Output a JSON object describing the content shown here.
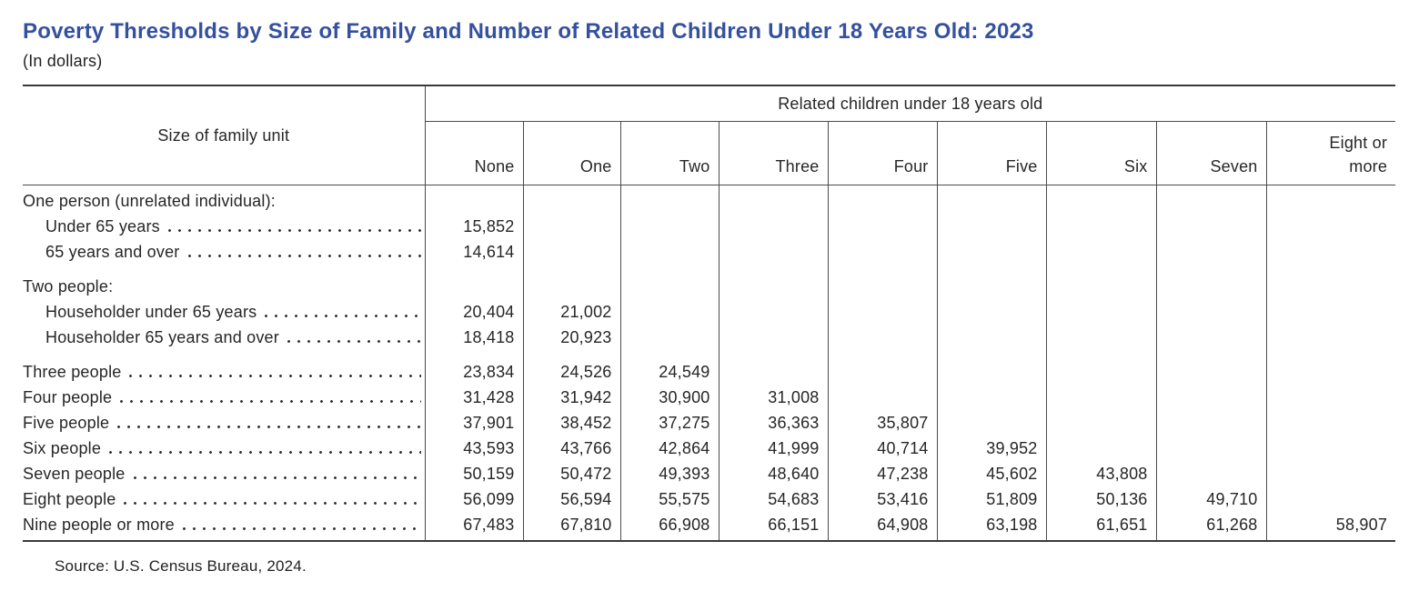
{
  "title": "Poverty Thresholds by Size of Family and Number of Related Children Under 18 Years Old: 2023",
  "subtitle": "(In dollars)",
  "source": "Source: U.S. Census Bureau, 2024.",
  "table": {
    "row_header": "Size of family unit",
    "col_group_header": "Related children under 18 years old",
    "columns": [
      "None",
      "One",
      "Two",
      "Three",
      "Four",
      "Five",
      "Six",
      "Seven",
      "Eight or\nmore"
    ],
    "rows": [
      {
        "label": "One person (unrelated individual):",
        "indent": false,
        "leader": false,
        "gap": false,
        "values": []
      },
      {
        "label": "Under 65 years",
        "indent": true,
        "leader": true,
        "gap": false,
        "values": [
          "15,852"
        ]
      },
      {
        "label": "65 years and over",
        "indent": true,
        "leader": true,
        "gap": false,
        "values": [
          "14,614"
        ]
      },
      {
        "label": "Two people:",
        "indent": false,
        "leader": false,
        "gap": true,
        "values": []
      },
      {
        "label": "Householder under 65 years",
        "indent": true,
        "leader": true,
        "gap": false,
        "values": [
          "20,404",
          "21,002"
        ]
      },
      {
        "label": "Householder 65 years and over",
        "indent": true,
        "leader": true,
        "gap": false,
        "values": [
          "18,418",
          "20,923"
        ]
      },
      {
        "label": "Three people",
        "indent": false,
        "leader": true,
        "gap": true,
        "values": [
          "23,834",
          "24,526",
          "24,549"
        ]
      },
      {
        "label": "Four people",
        "indent": false,
        "leader": true,
        "gap": false,
        "values": [
          "31,428",
          "31,942",
          "30,900",
          "31,008"
        ]
      },
      {
        "label": "Five people",
        "indent": false,
        "leader": true,
        "gap": false,
        "values": [
          "37,901",
          "38,452",
          "37,275",
          "36,363",
          "35,807"
        ]
      },
      {
        "label": "Six people",
        "indent": false,
        "leader": true,
        "gap": false,
        "values": [
          "43,593",
          "43,766",
          "42,864",
          "41,999",
          "40,714",
          "39,952"
        ]
      },
      {
        "label": "Seven people",
        "indent": false,
        "leader": true,
        "gap": false,
        "values": [
          "50,159",
          "50,472",
          "49,393",
          "48,640",
          "47,238",
          "45,602",
          "43,808"
        ]
      },
      {
        "label": "Eight people",
        "indent": false,
        "leader": true,
        "gap": false,
        "values": [
          "56,099",
          "56,594",
          "55,575",
          "54,683",
          "53,416",
          "51,809",
          "50,136",
          "49,710"
        ]
      },
      {
        "label": "Nine people or more",
        "indent": false,
        "leader": true,
        "gap": false,
        "values": [
          "67,483",
          "67,810",
          "66,908",
          "66,151",
          "64,908",
          "63,198",
          "61,651",
          "61,268",
          "58,907"
        ]
      }
    ]
  }
}
